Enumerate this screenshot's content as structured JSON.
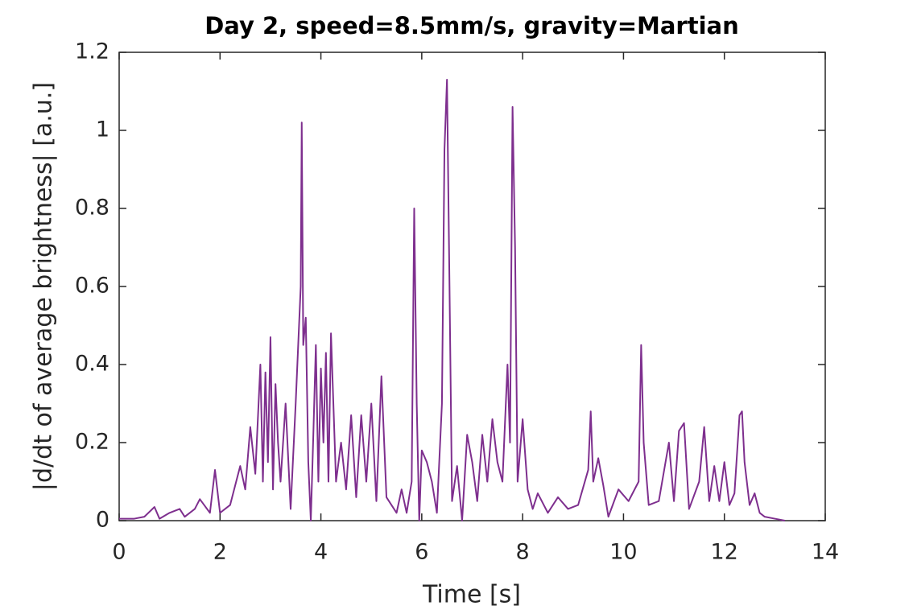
{
  "chart_data": {
    "type": "line",
    "title": "Day 2, speed=8.5mm/s, gravity=Martian",
    "x_label": "Time [s]",
    "y_label": "|d/dt of average brightness| [a.u.]",
    "xlim": [
      0,
      14
    ],
    "xticks": [
      0,
      2,
      4,
      6,
      8,
      10,
      12,
      14
    ],
    "ylim": [
      0,
      1.2
    ],
    "yticks": [
      0,
      0.2,
      0.4,
      0.6,
      0.8,
      1,
      1.2
    ],
    "grid": false,
    "x": [
      0,
      0.3,
      0.5,
      0.7,
      0.8,
      1.0,
      1.2,
      1.3,
      1.5,
      1.6,
      1.8,
      1.9,
      2.0,
      2.2,
      2.4,
      2.5,
      2.6,
      2.7,
      2.8,
      2.85,
      2.9,
      2.95,
      3.0,
      3.05,
      3.1,
      3.15,
      3.2,
      3.3,
      3.4,
      3.5,
      3.6,
      3.62,
      3.65,
      3.7,
      3.75,
      3.8,
      3.85,
      3.9,
      3.95,
      4.0,
      4.05,
      4.1,
      4.15,
      4.2,
      4.3,
      4.4,
      4.5,
      4.6,
      4.7,
      4.8,
      4.9,
      5.0,
      5.1,
      5.2,
      5.3,
      5.5,
      5.6,
      5.7,
      5.8,
      5.85,
      5.9,
      5.95,
      6.0,
      6.1,
      6.2,
      6.3,
      6.4,
      6.45,
      6.5,
      6.55,
      6.6,
      6.7,
      6.8,
      6.9,
      7.0,
      7.1,
      7.2,
      7.3,
      7.4,
      7.5,
      7.6,
      7.7,
      7.75,
      7.8,
      7.85,
      7.9,
      8.0,
      8.1,
      8.2,
      8.3,
      8.5,
      8.7,
      8.9,
      9.1,
      9.3,
      9.35,
      9.4,
      9.5,
      9.6,
      9.7,
      9.9,
      10.1,
      10.3,
      10.35,
      10.4,
      10.5,
      10.7,
      10.9,
      11.0,
      11.1,
      11.2,
      11.3,
      11.5,
      11.6,
      11.7,
      11.8,
      11.9,
      12.0,
      12.1,
      12.2,
      12.3,
      12.35,
      12.4,
      12.5,
      12.6,
      12.7,
      12.8,
      13.0,
      13.2
    ],
    "series": [
      {
        "color": "#7e2f8e",
        "values": [
          0.005,
          0.005,
          0.01,
          0.035,
          0.005,
          0.02,
          0.03,
          0.01,
          0.03,
          0.055,
          0.02,
          0.13,
          0.02,
          0.04,
          0.14,
          0.08,
          0.24,
          0.12,
          0.4,
          0.1,
          0.38,
          0.15,
          0.47,
          0.08,
          0.35,
          0.2,
          0.1,
          0.3,
          0.03,
          0.3,
          0.6,
          1.02,
          0.45,
          0.52,
          0.15,
          0.0,
          0.22,
          0.45,
          0.1,
          0.39,
          0.2,
          0.43,
          0.1,
          0.48,
          0.1,
          0.2,
          0.08,
          0.27,
          0.06,
          0.27,
          0.1,
          0.3,
          0.05,
          0.37,
          0.06,
          0.02,
          0.08,
          0.02,
          0.1,
          0.8,
          0.3,
          0.0,
          0.18,
          0.15,
          0.1,
          0.02,
          0.3,
          0.95,
          1.13,
          0.6,
          0.05,
          0.14,
          0.0,
          0.22,
          0.15,
          0.05,
          0.22,
          0.1,
          0.26,
          0.15,
          0.1,
          0.4,
          0.2,
          1.06,
          0.7,
          0.1,
          0.26,
          0.08,
          0.03,
          0.07,
          0.02,
          0.06,
          0.03,
          0.04,
          0.13,
          0.28,
          0.1,
          0.16,
          0.09,
          0.01,
          0.08,
          0.05,
          0.1,
          0.45,
          0.2,
          0.04,
          0.05,
          0.2,
          0.05,
          0.23,
          0.25,
          0.03,
          0.1,
          0.24,
          0.05,
          0.14,
          0.05,
          0.15,
          0.04,
          0.07,
          0.27,
          0.28,
          0.15,
          0.04,
          0.07,
          0.02,
          0.01,
          0.005,
          0.0
        ]
      }
    ]
  }
}
